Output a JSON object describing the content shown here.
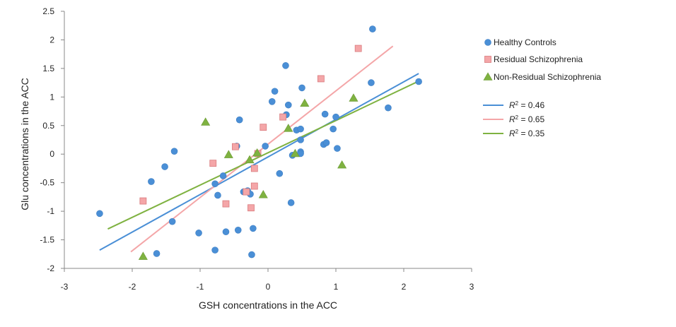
{
  "chart_data": {
    "type": "scatter",
    "title": "",
    "xlabel": "GSH concentrations in the ACC",
    "ylabel": "Glu concentrations in the ACC",
    "xlim": [
      -3,
      3
    ],
    "ylim": [
      -2,
      2.5
    ],
    "xticks": [
      -3,
      -2,
      -1,
      0,
      1,
      2,
      3
    ],
    "yticks": [
      -2,
      -1.5,
      -1,
      -0.5,
      0,
      0.5,
      1,
      1.5,
      2,
      2.5
    ],
    "grid": false,
    "legend_position": "right",
    "series": [
      {
        "name": "Healthy Controls",
        "marker": "circle",
        "color": "#4a8fd6",
        "points": [
          [
            -2.48,
            -1.04
          ],
          [
            -1.72,
            -0.48
          ],
          [
            -1.64,
            -1.74
          ],
          [
            -1.52,
            -0.22
          ],
          [
            -1.41,
            -1.18
          ],
          [
            -1.38,
            0.05
          ],
          [
            -1.02,
            -1.38
          ],
          [
            -0.78,
            -1.68
          ],
          [
            -0.78,
            -0.52
          ],
          [
            -0.74,
            -0.72
          ],
          [
            -0.66,
            -0.38
          ],
          [
            -0.62,
            -1.36
          ],
          [
            -0.44,
            -1.33
          ],
          [
            -0.42,
            0.6
          ],
          [
            -0.46,
            0.14
          ],
          [
            -0.36,
            -0.66
          ],
          [
            -0.3,
            -0.64
          ],
          [
            -0.26,
            -0.7
          ],
          [
            -0.24,
            -1.76
          ],
          [
            -0.22,
            -1.3
          ],
          [
            -0.04,
            0.14
          ],
          [
            0.06,
            0.92
          ],
          [
            0.1,
            1.1
          ],
          [
            0.17,
            -0.34
          ],
          [
            0.26,
            1.55
          ],
          [
            0.27,
            0.69
          ],
          [
            0.3,
            0.86
          ],
          [
            0.34,
            -0.85
          ],
          [
            0.36,
            -0.02
          ],
          [
            0.42,
            0.42
          ],
          [
            0.48,
            0.44
          ],
          [
            0.48,
            0.25
          ],
          [
            0.48,
            0.04
          ],
          [
            0.48,
            0.01
          ],
          [
            0.5,
            1.16
          ],
          [
            0.82,
            0.17
          ],
          [
            0.84,
            0.7
          ],
          [
            0.86,
            0.2
          ],
          [
            0.96,
            0.44
          ],
          [
            1.0,
            0.65
          ],
          [
            1.02,
            0.1
          ],
          [
            1.52,
            1.25
          ],
          [
            1.54,
            2.19
          ],
          [
            1.77,
            0.81
          ],
          [
            2.22,
            1.27
          ]
        ]
      },
      {
        "name": "Residual Schizophrenia",
        "marker": "square",
        "color": "#f4a6a8",
        "points": [
          [
            -1.84,
            -0.82
          ],
          [
            -0.81,
            -0.16
          ],
          [
            -0.62,
            -0.87
          ],
          [
            -0.48,
            0.13
          ],
          [
            -0.32,
            -0.66
          ],
          [
            -0.25,
            -0.94
          ],
          [
            -0.2,
            -0.25
          ],
          [
            -0.2,
            -0.56
          ],
          [
            -0.15,
            0.01
          ],
          [
            -0.07,
            0.47
          ],
          [
            0.22,
            0.65
          ],
          [
            0.78,
            1.32
          ],
          [
            1.33,
            1.85
          ]
        ]
      },
      {
        "name": "Non-Residual Schizophrenia",
        "marker": "triangle",
        "color": "#7fb241",
        "points": [
          [
            -1.84,
            -1.79
          ],
          [
            -0.92,
            0.56
          ],
          [
            -0.58,
            -0.01
          ],
          [
            -0.27,
            -0.1
          ],
          [
            -0.16,
            0.02
          ],
          [
            -0.07,
            -0.71
          ],
          [
            0.3,
            0.45
          ],
          [
            0.4,
            0.01
          ],
          [
            0.54,
            0.89
          ],
          [
            1.09,
            -0.19
          ],
          [
            1.26,
            0.98
          ]
        ]
      }
    ],
    "trendlines": [
      {
        "label_prefix": "R",
        "label_exp": "2",
        "label_value": " = 0.46",
        "color": "#4a8fd6",
        "x": [
          -2.48,
          2.22
        ],
        "y": [
          -1.68,
          1.41
        ]
      },
      {
        "label_prefix": "R",
        "label_exp": "2",
        "label_value": " = 0.65",
        "color": "#f4a6a8",
        "x": [
          -2.02,
          1.84
        ],
        "y": [
          -1.71,
          1.89
        ]
      },
      {
        "label_prefix": "R",
        "label_exp": "2",
        "label_value": " = 0.35",
        "color": "#7fb241",
        "x": [
          -2.36,
          2.26
        ],
        "y": [
          -1.31,
          1.3
        ]
      }
    ]
  }
}
